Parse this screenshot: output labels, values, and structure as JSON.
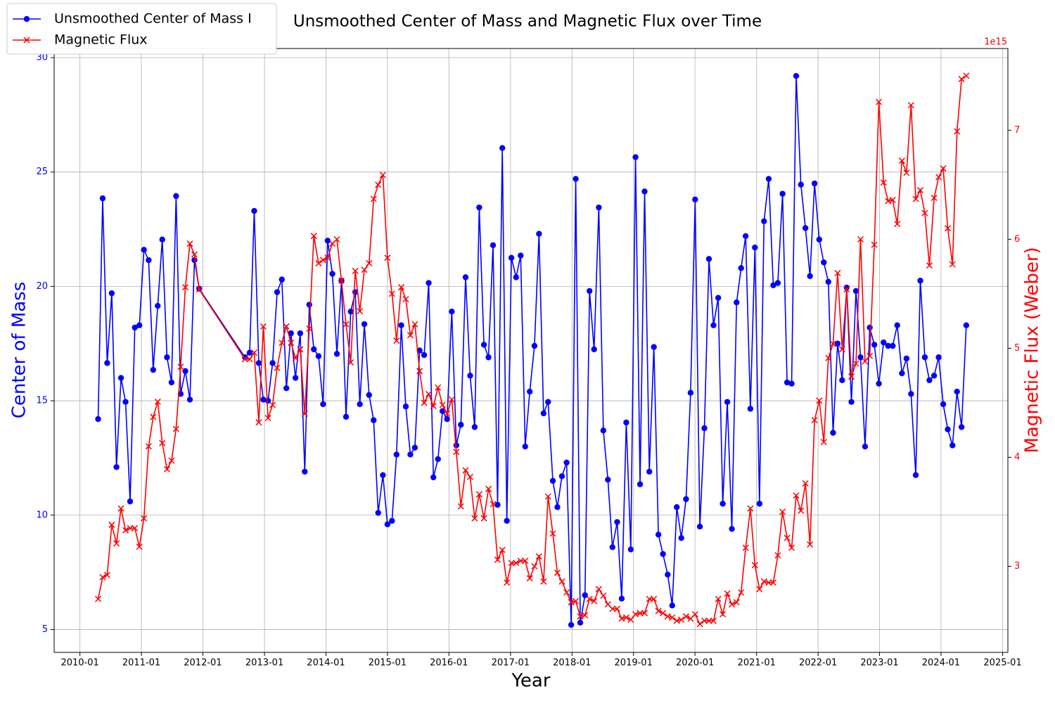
{
  "chart_data": {
    "type": "line",
    "title": "Unsmoothed Center of Mass and Magnetic Flux over Time",
    "xlabel": "Year",
    "ylabel": "Center of Mass",
    "y2label": "Magnetic Flux (Weber)",
    "y2_offset_label": "1e15",
    "grid": true,
    "legend": "upper left",
    "xlim": [
      "2009-08",
      "2025-02"
    ],
    "xticks": [
      "2010-01",
      "2011-01",
      "2012-01",
      "2013-01",
      "2014-01",
      "2015-01",
      "2016-01",
      "2017-01",
      "2018-01",
      "2019-01",
      "2020-01",
      "2021-01",
      "2022-01",
      "2023-01",
      "2024-01",
      "2025-01"
    ],
    "ylim": [
      4.0,
      30.4
    ],
    "yticks": [
      5,
      10,
      15,
      20,
      25,
      30
    ],
    "y2lim": [
      2210000000000000.0,
      7750000000000000.0
    ],
    "y2ticks": [
      {
        "value": 3000000000000000.0,
        "label": "3"
      },
      {
        "value": 4000000000000000.0,
        "label": "4"
      },
      {
        "value": 5000000000000000.0,
        "label": "5"
      },
      {
        "value": 6000000000000000.0,
        "label": "6"
      },
      {
        "value": 7000000000000000.0,
        "label": "7"
      }
    ],
    "x": [
      "2010-04-19",
      "2010-05-16",
      "2010-06-12",
      "2010-07-09",
      "2010-08-06",
      "2010-09-02",
      "2010-09-29",
      "2010-10-26",
      "2010-11-23",
      "2010-12-20",
      "2011-01-16",
      "2011-02-13",
      "2011-03-12",
      "2011-04-08",
      "2011-05-05",
      "2011-06-02",
      "2011-06-29",
      "2011-07-26",
      "2011-08-22",
      "2011-09-19",
      "2011-10-16",
      "2011-11-12",
      "2011-12-10",
      "2012-09-07",
      "2012-10-05",
      "2012-11-01",
      "2012-11-28",
      "2012-12-25",
      "2013-01-22",
      "2013-02-18",
      "2013-03-17",
      "2013-04-14",
      "2013-05-11",
      "2013-06-07",
      "2013-07-04",
      "2013-08-01",
      "2013-08-28",
      "2013-09-24",
      "2013-10-21",
      "2013-11-18",
      "2013-12-15",
      "2014-01-11",
      "2014-02-08",
      "2014-03-07",
      "2014-04-03",
      "2014-04-30",
      "2014-05-28",
      "2014-06-24",
      "2014-07-21",
      "2014-08-17",
      "2014-09-14",
      "2014-10-11",
      "2014-11-07",
      "2014-12-05",
      "2015-01-01",
      "2015-01-28",
      "2015-02-24",
      "2015-03-24",
      "2015-04-20",
      "2015-05-17",
      "2015-06-13",
      "2015-07-11",
      "2015-08-07",
      "2015-09-03",
      "2015-10-01",
      "2015-10-28",
      "2015-11-24",
      "2015-12-21",
      "2016-01-18",
      "2016-02-14",
      "2016-03-12",
      "2016-04-09",
      "2016-05-06",
      "2016-06-02",
      "2016-06-29",
      "2016-07-27",
      "2016-08-23",
      "2016-09-19",
      "2016-10-16",
      "2016-11-13",
      "2016-12-10",
      "2017-01-06",
      "2017-02-03",
      "2017-03-02",
      "2017-03-29",
      "2017-04-25",
      "2017-05-23",
      "2017-06-19",
      "2017-07-16",
      "2017-08-12",
      "2017-09-09",
      "2017-10-06",
      "2017-11-02",
      "2017-11-30",
      "2017-12-27",
      "2018-01-23",
      "2018-02-19",
      "2018-03-19",
      "2018-04-15",
      "2018-05-12",
      "2018-06-09",
      "2018-07-06",
      "2018-08-02",
      "2018-08-29",
      "2018-09-26",
      "2018-10-23",
      "2018-11-19",
      "2018-12-16",
      "2019-01-13",
      "2019-02-09",
      "2019-03-08",
      "2019-04-05",
      "2019-05-02",
      "2019-05-29",
      "2019-06-25",
      "2019-07-23",
      "2019-08-19",
      "2019-09-15",
      "2019-10-12",
      "2019-11-09",
      "2019-12-06",
      "2020-01-02",
      "2020-01-30",
      "2020-02-26",
      "2020-03-24",
      "2020-04-20",
      "2020-05-18",
      "2020-06-14",
      "2020-07-11",
      "2020-08-07",
      "2020-09-04",
      "2020-10-01",
      "2020-10-28",
      "2020-11-25",
      "2020-12-22",
      "2021-01-18",
      "2021-02-14",
      "2021-03-14",
      "2021-04-10",
      "2021-05-07",
      "2021-06-04",
      "2021-07-01",
      "2021-07-28",
      "2021-08-24",
      "2021-09-21",
      "2021-10-18",
      "2021-11-14",
      "2021-12-11",
      "2022-01-08",
      "2022-02-04",
      "2022-03-03",
      "2022-03-31",
      "2022-04-27",
      "2022-05-24",
      "2022-06-20",
      "2022-07-18",
      "2022-08-14",
      "2022-09-10",
      "2022-10-07",
      "2022-11-04",
      "2022-12-01",
      "2022-12-28",
      "2023-01-25",
      "2023-02-21",
      "2023-03-20",
      "2023-04-16",
      "2023-05-14",
      "2023-06-10",
      "2023-07-07",
      "2023-08-04",
      "2023-08-31",
      "2023-09-27",
      "2023-10-24",
      "2023-11-21",
      "2023-12-18",
      "2024-01-14",
      "2024-02-10",
      "2024-03-09",
      "2024-04-05",
      "2024-05-02",
      "2024-05-30"
    ],
    "series": [
      {
        "name": "Unsmoothed Center of Mass I",
        "color": "#0000ff",
        "marker": "circle",
        "values": [
          14.2,
          23.85,
          16.65,
          19.7,
          12.1,
          16.0,
          14.95,
          10.6,
          18.2,
          18.3,
          21.6,
          21.15,
          16.35,
          19.15,
          22.05,
          16.9,
          15.8,
          23.95,
          15.3,
          16.3,
          15.05,
          21.15,
          19.9,
          16.9,
          17.1,
          23.3,
          16.65,
          15.05,
          15.0,
          16.65,
          19.75,
          20.3,
          15.55,
          17.95,
          16.0,
          17.95,
          11.9,
          19.2,
          17.25,
          16.95,
          14.85,
          22.0,
          20.55,
          17.05,
          20.25,
          14.3,
          18.9,
          19.75,
          14.85,
          18.35,
          15.25,
          14.15,
          10.1,
          11.75,
          9.6,
          9.75,
          12.65,
          18.3,
          14.75,
          12.65,
          12.95,
          17.2,
          17.0,
          20.15,
          11.65,
          12.45,
          14.55,
          14.2,
          18.9,
          13.05,
          13.95,
          20.4,
          16.1,
          13.85,
          23.45,
          17.45,
          16.9,
          21.8,
          10.45,
          26.05,
          9.75,
          21.25,
          20.4,
          21.35,
          13.0,
          15.4,
          17.4,
          22.3,
          14.45,
          14.95,
          11.5,
          10.35,
          11.7,
          12.3,
          5.2,
          24.7,
          5.3,
          6.5,
          19.8,
          17.25,
          23.45,
          13.7,
          11.55,
          8.6,
          9.7,
          6.35,
          14.05,
          8.5,
          25.65,
          11.35,
          24.15,
          11.9,
          17.35,
          9.15,
          8.3,
          7.4,
          6.05,
          10.35,
          9.0,
          10.7,
          15.35,
          23.8,
          9.5,
          13.8,
          21.2,
          18.3,
          19.5,
          10.5,
          14.95,
          9.4,
          19.3,
          20.8,
          22.2,
          14.65,
          21.7,
          10.5,
          22.85,
          24.7,
          20.05,
          20.15,
          24.05,
          15.8,
          15.75,
          29.2,
          24.45,
          22.55,
          20.45,
          24.5,
          22.05,
          21.05,
          20.2,
          13.6,
          17.5,
          15.9,
          19.95,
          14.95,
          19.8,
          16.9,
          13.0,
          18.2,
          17.45,
          15.75,
          17.55,
          17.4,
          17.4,
          18.3,
          16.2,
          16.85,
          15.3,
          11.75,
          20.25,
          16.9,
          15.9,
          16.1,
          16.9,
          14.85,
          13.75,
          13.05,
          15.4,
          13.85,
          18.3
        ]
      },
      {
        "name": "Magnetic Flux",
        "color": "#ff0000",
        "marker": "x",
        "axis": "y2",
        "values": [
          2700000000000000.0,
          2900000000000000.0,
          2920000000000000.0,
          3380000000000000.0,
          3210000000000000.0,
          3530000000000000.0,
          3330000000000000.0,
          3350000000000000.0,
          3350000000000000.0,
          3180000000000000.0,
          3440000000000000.0,
          4100000000000000.0,
          4370000000000000.0,
          4510000000000000.0,
          4130000000000000.0,
          3890000000000000.0,
          3970000000000000.0,
          4260000000000000.0,
          4830000000000000.0,
          5560000000000000.0,
          5960000000000000.0,
          5860000000000000.0,
          5540000000000000.0,
          4900000000000000.0,
          4900000000000000.0,
          4960000000000000.0,
          4320000000000000.0,
          5200000000000000.0,
          4360000000000000.0,
          4480000000000000.0,
          4820000000000000.0,
          5050000000000000.0,
          5200000000000000.0,
          5050000000000000.0,
          4910000000000000.0,
          4990000000000000.0,
          4400000000000000.0,
          5180000000000000.0,
          6030000000000000.0,
          5780000000000000.0,
          5810000000000000.0,
          5830000000000000.0,
          5960000000000000.0,
          6000000000000000.0,
          5620000000000000.0,
          5220000000000000.0,
          4870000000000000.0,
          5710000000000000.0,
          5340000000000000.0,
          5720000000000000.0,
          5780000000000000.0,
          6370000000000000.0,
          6500000000000000.0,
          6590000000000000.0,
          5830000000000000.0,
          5500000000000000.0,
          5070000000000000.0,
          5560000000000000.0,
          5450000000000000.0,
          5120000000000000.0,
          5220000000000000.0,
          4790000000000000.0,
          4500000000000000.0,
          4580000000000000.0,
          4470000000000000.0,
          4640000000000000.0,
          4480000000000000.0,
          4400000000000000.0,
          4530000000000000.0,
          4050000000000000.0,
          3550000000000000.0,
          3880000000000000.0,
          3820000000000000.0,
          3440000000000000.0,
          3660000000000000.0,
          3440000000000000.0,
          3710000000000000.0,
          3570000000000000.0,
          3060000000000000.0,
          3150000000000000.0,
          2850000000000000.0,
          3030000000000000.0,
          3030000000000000.0,
          3050000000000000.0,
          3050000000000000.0,
          2890000000000000.0,
          3000000000000000.0,
          3090000000000000.0,
          2860000000000000.0,
          3640000000000000.0,
          3300000000000000.0,
          2940000000000000.0,
          2860000000000000.0,
          2760000000000000.0,
          2670000000000000.0,
          2680000000000000.0,
          2540000000000000.0,
          2550000000000000.0,
          2700000000000000.0,
          2680000000000000.0,
          2790000000000000.0,
          2730000000000000.0,
          2650000000000000.0,
          2610000000000000.0,
          2610000000000000.0,
          2520000000000000.0,
          2530000000000000.0,
          2510000000000000.0,
          2560000000000000.0,
          2570000000000000.0,
          2570000000000000.0,
          2700000000000000.0,
          2700000000000000.0,
          2590000000000000.0,
          2570000000000000.0,
          2540000000000000.0,
          2530000000000000.0,
          2500000000000000.0,
          2510000000000000.0,
          2540000000000000.0,
          2520000000000000.0,
          2560000000000000.0,
          2470000000000000.0,
          2500000000000000.0,
          2500000000000000.0,
          2500000000000000.0,
          2700000000000000.0,
          2560000000000000.0,
          2750000000000000.0,
          2650000000000000.0,
          2670000000000000.0,
          2760000000000000.0,
          3170000000000000.0,
          3530000000000000.0,
          3010000000000000.0,
          2790000000000000.0,
          2860000000000000.0,
          2850000000000000.0,
          2850000000000000.0,
          3100000000000000.0,
          3500000000000000.0,
          3260000000000000.0,
          3170000000000000.0,
          3650000000000000.0,
          3510000000000000.0,
          3760000000000000.0,
          3200000000000000.0,
          4340000000000000.0,
          4520000000000000.0,
          4140000000000000.0,
          4910000000000000.0,
          5040000000000000.0,
          5690000000000000.0,
          4990000000000000.0,
          5540000000000000.0,
          4740000000000000.0,
          4860000000000000.0,
          6000000000000000.0,
          4880000000000000.0,
          4930000000000000.0,
          5950000000000000.0,
          7260000000000000.0,
          6520000000000000.0,
          6350000000000000.0,
          6360000000000000.0,
          6140000000000000.0,
          6720000000000000.0,
          6610000000000000.0,
          7230000000000000.0,
          6370000000000000.0,
          6450000000000000.0,
          6240000000000000.0,
          5760000000000000.0,
          6380000000000000.0,
          6570000000000000.0,
          6650000000000000.0,
          6100000000000000.0,
          5770000000000000.0,
          6990000000000000.0,
          7470000000000000.0,
          7500000000000000.0
        ]
      }
    ]
  }
}
